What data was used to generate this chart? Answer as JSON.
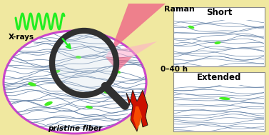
{
  "bg_color": "#f0e8a0",
  "fiber_line_color": "#5878a0",
  "green_spot_color": "#44ee22",
  "magnifier_ring_color": "#303030",
  "magnifier_glass_color": "#d0dde8",
  "oval_fill_color": "#ffffff",
  "oval_border_color": "#cc44cc",
  "pink_tri_color": "#ee6688",
  "pink_beam_color": "#ffaacc",
  "xray_wave_color": "#22ee22",
  "flame_red": "#cc1100",
  "flame_orange": "#ff5500",
  "flame_yellow": "#ffaa00",
  "panel_bg": "#ffffff",
  "panel_border": "#888888",
  "title_short": "Short",
  "title_extended": "Extended",
  "label_xrays": "X-rays",
  "label_raman": "Raman",
  "label_pristine": "pristine fiber",
  "label_time": "0–40 h",
  "text_color": "#000000"
}
